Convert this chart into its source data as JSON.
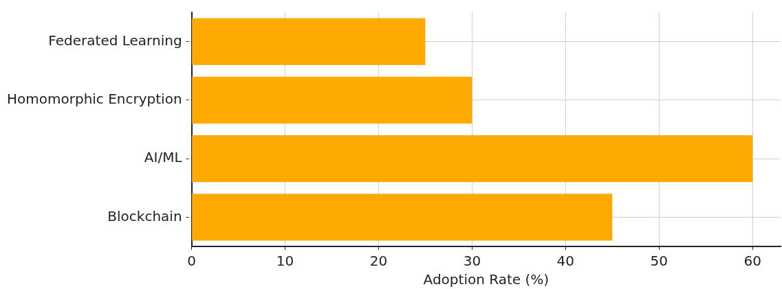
{
  "chart_data": {
    "type": "bar",
    "orientation": "horizontal",
    "xlabel": "Adoption Rate (%)",
    "categories": [
      "Federated Learning",
      "Homomorphic Encryption",
      "AI/ML",
      "Blockchain"
    ],
    "values": [
      25,
      30,
      60,
      45
    ],
    "color": "#ffaa00",
    "xlim": [
      0,
      63
    ],
    "xticks": [
      0,
      10,
      20,
      30,
      40,
      50,
      60
    ],
    "grid": true,
    "legend": false
  }
}
